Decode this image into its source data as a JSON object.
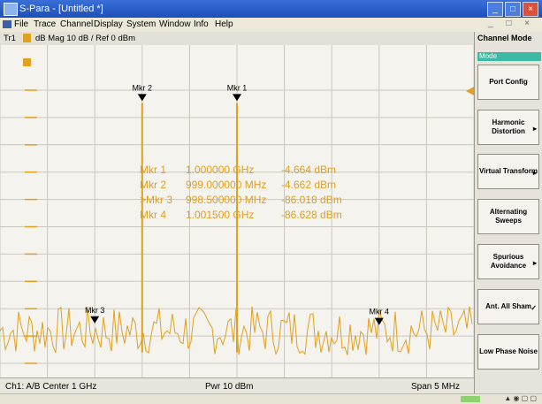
{
  "window": {
    "title": "S-Para - [Untitled *]"
  },
  "menu": [
    "File",
    "Trace",
    "Channel",
    "Display",
    "System",
    "Window",
    "Info",
    "Help"
  ],
  "trace": {
    "id": "Tr1",
    "info": "dB Mag  10 dB / Ref 0 dBm"
  },
  "markers": [
    {
      "label": "Mkr 1",
      "freq": "1.000000 GHz",
      "value": "-4.664 dBm"
    },
    {
      "label": "Mkr 2",
      "freq": "999.000000 MHz",
      "value": "-4.662 dBm"
    },
    {
      "label": ">Mkr 3",
      "freq": "998.500000 MHz",
      "value": "-86.018 dBm"
    },
    {
      "label": "Mkr 4",
      "freq": "1.001500 GHz",
      "value": "-86.628 dBm"
    }
  ],
  "marker_tags": [
    "Mkr 1",
    "Mkr 2",
    "Mkr 3",
    "Mkr 4"
  ],
  "status": {
    "channel": "Ch1: A/B  Center 1 GHz",
    "power": "Pwr 10 dBm",
    "span": "Span 5 MHz"
  },
  "sidebar": {
    "title": "Channel Mode",
    "subtitle": "Mode",
    "buttons": [
      "Port Config",
      "Harmonic Distortion",
      "Virtual Transform",
      "Alternating Sweeps",
      "Spurious Avoidance",
      "Ant. All Sham",
      "Low Phase Noise"
    ]
  },
  "colors": {
    "trace": "#e0a020",
    "marker": "#000000",
    "accent": "#3bb9a5"
  },
  "chart_data": {
    "type": "line",
    "xlabel": "",
    "ylabel": "",
    "xlim_mhz": [
      997.5,
      1002.5
    ],
    "ylim_db": [
      -100,
      0
    ],
    "grid": true,
    "series": [
      {
        "x": [
          997.5,
          998.0,
          998.5,
          999.0,
          999.5,
          1000.0,
          1000.5,
          1001.0,
          1001.5,
          1002.0,
          1002.5
        ],
        "values": [
          -88,
          -89,
          -86,
          -4.662,
          -89,
          -4.664,
          -88,
          -90,
          -86.628,
          -89,
          -88
        ]
      }
    ],
    "markers": [
      {
        "label": "Mkr 1",
        "x": 1000.0,
        "y": -4.664
      },
      {
        "label": "Mkr 2",
        "x": 999.0,
        "y": -4.662
      },
      {
        "label": "Mkr 3",
        "x": 998.5,
        "y": -86.018
      },
      {
        "label": "Mkr 4",
        "x": 1001.5,
        "y": -86.628
      }
    ]
  }
}
